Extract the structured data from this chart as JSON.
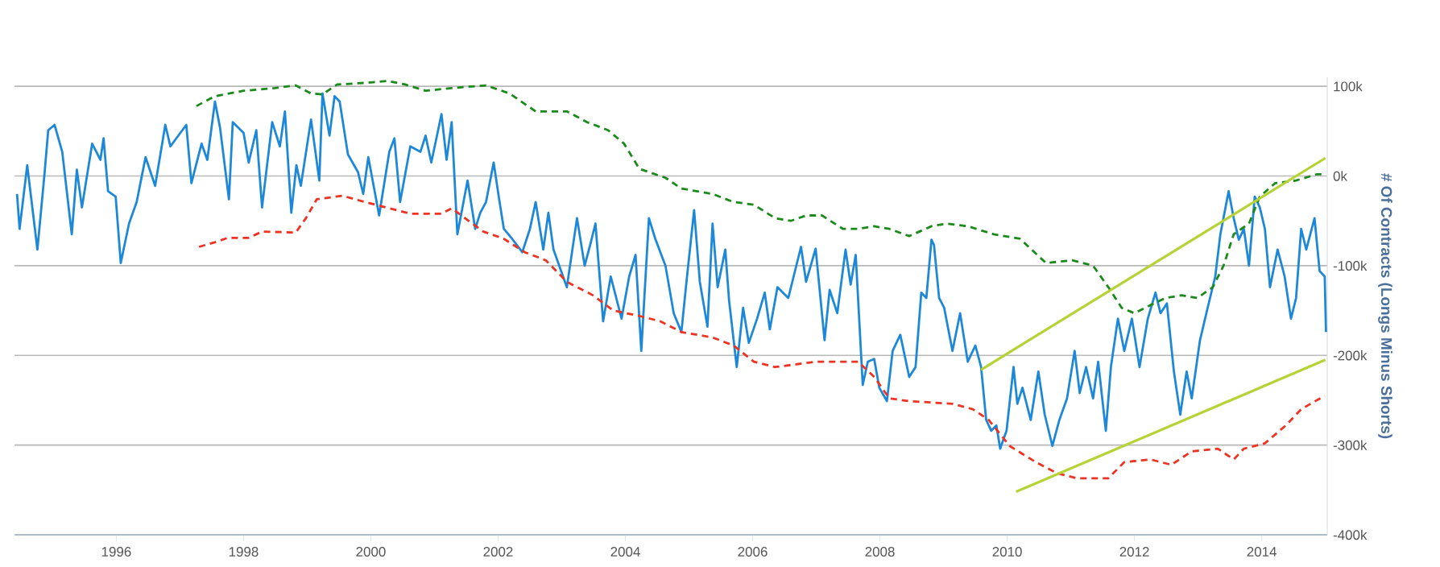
{
  "chart_data": {
    "type": "line",
    "ylabel": "# Of Contracts (Longs Minus Shorts)",
    "xlim": [
      1994.4,
      2015.03
    ],
    "xticks": [
      1996,
      1998,
      2000,
      2002,
      2004,
      2006,
      2008,
      2010,
      2012,
      2014
    ],
    "ylim": [
      -400,
      110
    ],
    "yticks": [
      {
        "value": 100,
        "label": "100k"
      },
      {
        "value": 0,
        "label": "0k"
      },
      {
        "value": -100,
        "label": "-100k"
      },
      {
        "value": -200,
        "label": "-200k"
      },
      {
        "value": -300,
        "label": "-300k"
      },
      {
        "value": -400,
        "label": "-400k"
      }
    ],
    "grid": "y",
    "series": [
      {
        "color": "#1e88d8",
        "line_style": "solid",
        "x": [
          1994.44,
          1994.48,
          1994.6,
          1994.68,
          1994.76,
          1994.87,
          1994.93,
          1995.03,
          1995.15,
          1995.3,
          1995.38,
          1995.46,
          1995.62,
          1995.75,
          1995.8,
          1995.87,
          1995.99,
          1996.07,
          1996.2,
          1996.32,
          1996.46,
          1996.61,
          1996.77,
          1996.85,
          1997.1,
          1997.18,
          1997.34,
          1997.43,
          1997.55,
          1997.63,
          1997.77,
          1997.83,
          1998.0,
          1998.08,
          1998.2,
          1998.29,
          1998.45,
          1998.57,
          1998.65,
          1998.75,
          1998.83,
          1998.9,
          1999.06,
          1999.19,
          1999.24,
          1999.35,
          1999.43,
          1999.51,
          1999.64,
          1999.8,
          1999.88,
          1999.96,
          2000.13,
          2000.29,
          2000.37,
          2000.46,
          2000.62,
          2000.78,
          2000.86,
          2000.95,
          2001.11,
          2001.19,
          2001.27,
          2001.36,
          2001.52,
          2001.64,
          2001.72,
          2001.81,
          2001.93,
          2002.01,
          2002.09,
          2002.22,
          2002.38,
          2002.5,
          2002.59,
          2002.71,
          2002.79,
          2002.87,
          2003.08,
          2003.24,
          2003.36,
          2003.45,
          2003.53,
          2003.65,
          2003.77,
          2003.94,
          2004.06,
          2004.16,
          2004.25,
          2004.37,
          2004.47,
          2004.63,
          2004.76,
          2004.88,
          2004.96,
          2005.08,
          2005.17,
          2005.29,
          2005.37,
          2005.45,
          2005.57,
          2005.63,
          2005.75,
          2005.85,
          2005.94,
          2006.07,
          2006.19,
          2006.27,
          2006.39,
          2006.56,
          2006.76,
          2006.84,
          2006.99,
          2007.13,
          2007.21,
          2007.33,
          2007.46,
          2007.54,
          2007.62,
          2007.73,
          2007.81,
          2007.91,
          2007.99,
          2008.11,
          2008.2,
          2008.32,
          2008.46,
          2008.56,
          2008.65,
          2008.73,
          2008.81,
          2008.85,
          2008.93,
          2009.01,
          2009.14,
          2009.26,
          2009.38,
          2009.5,
          2009.59,
          2009.67,
          2009.75,
          2009.83,
          2009.89,
          2009.99,
          2010.1,
          2010.16,
          2010.24,
          2010.37,
          2010.49,
          2010.59,
          2010.71,
          2010.82,
          2010.94,
          2011.06,
          2011.14,
          2011.24,
          2011.35,
          2011.43,
          2011.55,
          2011.63,
          2011.74,
          2011.84,
          2011.96,
          2012.08,
          2012.21,
          2012.33,
          2012.41,
          2012.51,
          2012.62,
          2012.72,
          2012.82,
          2012.9,
          2013.03,
          2013.15,
          2013.27,
          2013.35,
          2013.48,
          2013.56,
          2013.64,
          2013.72,
          2013.8,
          2013.89,
          2013.97,
          2014.05,
          2014.13,
          2014.25,
          2014.36,
          2014.46,
          2014.54,
          2014.62,
          2014.7,
          2014.83,
          2014.91,
          2014.99,
          2015.01
        ],
        "values": [
          -20,
          -59,
          12,
          -35,
          -82,
          1,
          51,
          57,
          27,
          -65,
          7,
          -35,
          36,
          18,
          42,
          -17,
          -23,
          -97,
          -53,
          -29,
          21,
          -11,
          57,
          33,
          57,
          -8,
          36,
          18,
          83,
          54,
          -26,
          60,
          48,
          15,
          51,
          -35,
          60,
          33,
          72,
          -41,
          12,
          -11,
          63,
          -5,
          92,
          45,
          89,
          83,
          24,
          4,
          -20,
          21,
          -44,
          27,
          42,
          -29,
          33,
          27,
          45,
          15,
          69,
          18,
          60,
          -65,
          -5,
          -59,
          -41,
          -29,
          15,
          -23,
          -59,
          -70,
          -85,
          -59,
          -29,
          -82,
          -41,
          -82,
          -124,
          -47,
          -100,
          -76,
          -53,
          -162,
          -112,
          -159,
          -112,
          -88,
          -195,
          -47,
          -70,
          -100,
          -153,
          -174,
          -118,
          -38,
          -118,
          -168,
          -53,
          -124,
          -82,
          -139,
          -213,
          -147,
          -186,
          -159,
          -130,
          -171,
          -124,
          -136,
          -79,
          -118,
          -81,
          -183,
          -127,
          -153,
          -82,
          -121,
          -88,
          -233,
          -207,
          -204,
          -236,
          -251,
          -195,
          -177,
          -224,
          -213,
          -130,
          -136,
          -71,
          -77,
          -136,
          -147,
          -195,
          -153,
          -207,
          -189,
          -213,
          -272,
          -284,
          -278,
          -304,
          -284,
          -213,
          -254,
          -236,
          -272,
          -218,
          -266,
          -301,
          -272,
          -248,
          -195,
          -242,
          -213,
          -248,
          -207,
          -284,
          -213,
          -159,
          -195,
          -159,
          -213,
          -159,
          -130,
          -153,
          -142,
          -218,
          -266,
          -218,
          -248,
          -183,
          -147,
          -112,
          -65,
          -17,
          -47,
          -71,
          -59,
          -100,
          -23,
          -35,
          -59,
          -124,
          -82,
          -112,
          -159,
          -136,
          -59,
          -82,
          -47,
          -106,
          -112,
          -174
        ]
      },
      {
        "color": "#1a8a1a",
        "line_style": "dashed",
        "x": [
          1997.26,
          1997.55,
          1998.0,
          1998.49,
          1998.82,
          1999.06,
          1999.24,
          1999.47,
          1999.96,
          2000.25,
          2000.54,
          2000.86,
          2001.27,
          2001.81,
          2002.18,
          2002.59,
          2003.08,
          2003.4,
          2003.73,
          2003.98,
          2004.22,
          2004.63,
          2004.88,
          2005.37,
          2005.7,
          2006.02,
          2006.35,
          2006.6,
          2006.84,
          2007.09,
          2007.42,
          2007.66,
          2007.91,
          2008.15,
          2008.46,
          2008.81,
          2009.05,
          2009.38,
          2009.79,
          2010.2,
          2010.61,
          2011.02,
          2011.35,
          2011.59,
          2011.8,
          2012.0,
          2012.25,
          2012.49,
          2012.74,
          2012.99,
          2013.23,
          2013.4,
          2013.56,
          2013.8,
          2013.97,
          2014.21,
          2014.54,
          2014.87,
          2014.99
        ],
        "values": [
          78,
          89,
          95,
          98,
          101,
          92,
          91,
          102,
          104,
          106,
          102,
          95,
          98,
          101,
          92,
          72,
          72,
          60,
          51,
          36,
          8,
          -2,
          -14,
          -20,
          -29,
          -32,
          -47,
          -50,
          -44,
          -44,
          -59,
          -59,
          -56,
          -59,
          -67,
          -56,
          -53,
          -56,
          -65,
          -70,
          -97,
          -94,
          -100,
          -124,
          -147,
          -153,
          -144,
          -136,
          -133,
          -136,
          -124,
          -100,
          -65,
          -53,
          -23,
          -8,
          -5,
          2,
          2
        ]
      },
      {
        "color": "#ee3322",
        "line_style": "dashed",
        "x": [
          1997.3,
          1997.59,
          1997.75,
          1998.08,
          1998.29,
          1998.82,
          1998.98,
          1999.15,
          1999.55,
          1999.96,
          2000.29,
          2000.62,
          2001.11,
          2001.27,
          2001.48,
          2001.77,
          2002.09,
          2002.42,
          2002.75,
          2003.08,
          2003.49,
          2003.81,
          2004.22,
          2004.55,
          2004.88,
          2005.37,
          2005.7,
          2006.02,
          2006.35,
          2007.01,
          2007.66,
          2007.91,
          2008.15,
          2008.46,
          2009.14,
          2009.46,
          2009.71,
          2010.04,
          2010.45,
          2010.77,
          2011.1,
          2011.59,
          2011.84,
          2012.25,
          2012.58,
          2012.9,
          2013.31,
          2013.56,
          2013.72,
          2014.05,
          2014.38,
          2014.62,
          2014.99
        ],
        "values": [
          -79,
          -73,
          -69,
          -69,
          -62,
          -63,
          -47,
          -26,
          -22,
          -30,
          -36,
          -42,
          -42,
          -36,
          -47,
          -62,
          -70,
          -85,
          -94,
          -118,
          -133,
          -150,
          -156,
          -162,
          -174,
          -180,
          -189,
          -207,
          -213,
          -207,
          -207,
          -224,
          -248,
          -251,
          -254,
          -260,
          -272,
          -301,
          -319,
          -331,
          -337,
          -337,
          -319,
          -316,
          -322,
          -307,
          -304,
          -316,
          -304,
          -298,
          -278,
          -260,
          -245
        ]
      },
      {
        "color": "#b5d334",
        "line_style": "solid",
        "x": [
          2009.59,
          2015.0
        ],
        "values": [
          -216,
          20
        ]
      },
      {
        "color": "#b5d334",
        "line_style": "solid",
        "x": [
          2010.14,
          2015.0
        ],
        "values": [
          -352,
          -205
        ]
      }
    ]
  }
}
